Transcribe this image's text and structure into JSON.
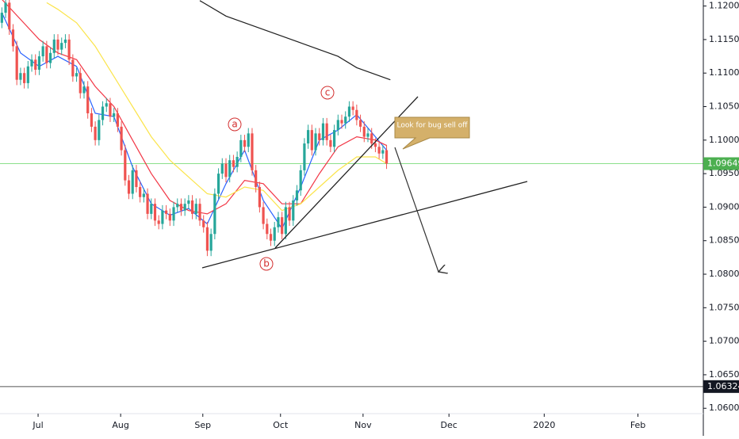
{
  "chart_data": {
    "type": "candlestick",
    "candles": [
      [
        1.1175,
        1.1198,
        1.1167,
        1.119
      ],
      [
        1.119,
        1.1213,
        1.1182,
        1.1205
      ],
      [
        1.1205,
        1.1213,
        1.1157,
        1.1165
      ],
      [
        1.1165,
        1.1173,
        1.1132,
        1.114
      ],
      [
        1.114,
        1.1148,
        1.1082,
        1.109
      ],
      [
        1.109,
        1.1108,
        1.1082,
        1.11
      ],
      [
        1.11,
        1.1108,
        1.1077,
        1.1085
      ],
      [
        1.1085,
        1.1118,
        1.1077,
        1.111
      ],
      [
        1.111,
        1.1128,
        1.1102,
        1.112
      ],
      [
        1.112,
        1.1128,
        1.1097,
        1.1105
      ],
      [
        1.1105,
        1.1133,
        1.1097,
        1.1125
      ],
      [
        1.1125,
        1.1148,
        1.1117,
        1.114
      ],
      [
        1.114,
        1.1148,
        1.1107,
        1.1115
      ],
      [
        1.1115,
        1.1138,
        1.1107,
        1.113
      ],
      [
        1.113,
        1.1158,
        1.1122,
        1.115
      ],
      [
        1.115,
        1.1158,
        1.1127,
        1.1135
      ],
      [
        1.1135,
        1.1153,
        1.1127,
        1.1145
      ],
      [
        1.1145,
        1.1158,
        1.1137,
        1.115
      ],
      [
        1.115,
        1.1158,
        1.1112,
        1.112
      ],
      [
        1.112,
        1.1128,
        1.1087,
        1.1095
      ],
      [
        1.1095,
        1.1108,
        1.1087,
        1.11
      ],
      [
        1.11,
        1.1108,
        1.1062,
        1.107
      ],
      [
        1.107,
        1.1088,
        1.1062,
        1.108
      ],
      [
        1.108,
        1.1088,
        1.1032,
        1.104
      ],
      [
        1.104,
        1.1048,
        1.1012,
        1.102
      ],
      [
        1.102,
        1.1028,
        1.0992,
        1.1
      ],
      [
        1.1,
        1.1038,
        1.0992,
        1.103
      ],
      [
        1.103,
        1.1058,
        1.1022,
        1.105
      ],
      [
        1.105,
        1.1063,
        1.1042,
        1.1055
      ],
      [
        1.1055,
        1.1063,
        1.1027,
        1.1035
      ],
      [
        1.1035,
        1.1048,
        1.1027,
        1.104
      ],
      [
        1.104,
        1.1048,
        1.1012,
        1.102
      ],
      [
        1.102,
        1.1028,
        1.0977,
        1.0985
      ],
      [
        1.0985,
        1.0993,
        1.0932,
        1.094
      ],
      [
        1.094,
        1.0948,
        1.0912,
        1.092
      ],
      [
        1.092,
        1.0963,
        1.0912,
        1.0955
      ],
      [
        1.0955,
        1.0963,
        1.0922,
        1.093
      ],
      [
        1.093,
        1.0938,
        1.0907,
        1.0915
      ],
      [
        1.0915,
        1.0928,
        1.0907,
        1.092
      ],
      [
        1.092,
        1.0928,
        1.0882,
        1.089
      ],
      [
        1.089,
        1.0913,
        1.0882,
        1.0905
      ],
      [
        1.0905,
        1.0913,
        1.0872,
        1.088
      ],
      [
        1.088,
        1.0888,
        1.0867,
        1.0875
      ],
      [
        1.0875,
        1.0903,
        1.0867,
        1.0895
      ],
      [
        1.0895,
        1.0903,
        1.0882,
        1.089
      ],
      [
        1.089,
        1.0898,
        1.0872,
        1.088
      ],
      [
        1.088,
        1.0908,
        1.0872,
        1.09
      ],
      [
        1.09,
        1.0913,
        1.0892,
        1.0905
      ],
      [
        1.0905,
        1.0913,
        1.0887,
        1.0895
      ],
      [
        1.0895,
        1.0913,
        1.0887,
        1.0905
      ],
      [
        1.0905,
        1.0918,
        1.0897,
        1.091
      ],
      [
        1.091,
        1.0918,
        1.0882,
        1.089
      ],
      [
        1.089,
        1.0913,
        1.0882,
        1.0905
      ],
      [
        1.0905,
        1.0913,
        1.0872,
        1.088
      ],
      [
        1.088,
        1.0888,
        1.0862,
        1.087
      ],
      [
        1.087,
        1.0878,
        1.0827,
        1.0835
      ],
      [
        1.0835,
        1.0868,
        1.0827,
        1.086
      ],
      [
        1.086,
        1.0928,
        1.0852,
        1.092
      ],
      [
        1.092,
        1.0958,
        1.0912,
        1.095
      ],
      [
        1.095,
        1.0973,
        1.0942,
        1.0965
      ],
      [
        1.0965,
        1.0973,
        1.0937,
        1.0945
      ],
      [
        1.0945,
        1.0978,
        1.0937,
        1.097
      ],
      [
        1.097,
        1.0978,
        1.0952,
        1.096
      ],
      [
        1.096,
        1.0983,
        1.0952,
        1.0975
      ],
      [
        1.0975,
        1.1008,
        1.0967,
        1.1
      ],
      [
        1.1,
        1.1008,
        1.0982,
        1.099
      ],
      [
        1.099,
        1.1018,
        1.0982,
        1.101
      ],
      [
        1.101,
        1.1018,
        1.0947,
        1.0955
      ],
      [
        1.0955,
        1.0963,
        1.0922,
        1.093
      ],
      [
        1.093,
        1.0938,
        1.0892,
        1.09
      ],
      [
        1.09,
        1.0908,
        1.0867,
        1.0875
      ],
      [
        1.0875,
        1.0883,
        1.0852,
        1.086
      ],
      [
        1.086,
        1.0868,
        1.0842,
        1.085
      ],
      [
        1.085,
        1.0878,
        1.0842,
        1.087
      ],
      [
        1.087,
        1.0893,
        1.0862,
        1.0885
      ],
      [
        1.0885,
        1.0893,
        1.0852,
        1.086
      ],
      [
        1.086,
        1.0908,
        1.0852,
        1.09
      ],
      [
        1.09,
        1.0908,
        1.0872,
        1.088
      ],
      [
        1.088,
        1.0918,
        1.0872,
        1.091
      ],
      [
        1.091,
        1.0933,
        1.0902,
        1.0925
      ],
      [
        1.0925,
        1.0963,
        1.0917,
        1.0955
      ],
      [
        1.0955,
        1.1003,
        1.0947,
        1.0995
      ],
      [
        1.0995,
        1.1023,
        1.0987,
        1.1015
      ],
      [
        1.1015,
        1.1023,
        1.0977,
        1.0985
      ],
      [
        1.0985,
        1.1018,
        1.0977,
        1.101
      ],
      [
        1.101,
        1.1018,
        1.0992,
        1.1
      ],
      [
        1.1,
        1.1033,
        1.0992,
        1.1025
      ],
      [
        1.1025,
        1.1033,
        1.0992,
        1.1
      ],
      [
        1.1,
        1.1008,
        1.0982,
        1.099
      ],
      [
        1.099,
        1.1023,
        1.0982,
        1.1015
      ],
      [
        1.1015,
        1.1038,
        1.1007,
        1.103
      ],
      [
        1.103,
        1.1038,
        1.1017,
        1.1025
      ],
      [
        1.1025,
        1.1043,
        1.1017,
        1.1035
      ],
      [
        1.1035,
        1.1058,
        1.1027,
        1.105
      ],
      [
        1.105,
        1.1058,
        1.1037,
        1.1045
      ],
      [
        1.1045,
        1.1053,
        1.1022,
        1.103
      ],
      [
        1.103,
        1.1038,
        1.1012,
        1.102
      ],
      [
        1.102,
        1.1028,
        1.0997,
        1.1005
      ],
      [
        1.1005,
        1.1018,
        1.0997,
        1.101
      ],
      [
        1.101,
        1.1018,
        1.0987,
        1.0995
      ],
      [
        1.0995,
        1.1003,
        1.0982,
        1.099
      ],
      [
        1.099,
        1.0998,
        1.0972,
        1.098
      ],
      [
        1.098,
        1.0993,
        1.0972,
        1.0985
      ],
      [
        1.0985,
        1.0993,
        1.0957,
        1.0965
      ]
    ],
    "up_color": "#26a69a",
    "down_color": "#ef5350",
    "series": [
      {
        "color": "#2962ff",
        "x": [
          0,
          5,
          10,
          15,
          20,
          25,
          30,
          35,
          40,
          45,
          50,
          55,
          60,
          65,
          70,
          75,
          80,
          85,
          90,
          95,
          100,
          103
        ],
        "values": [
          1.119,
          1.113,
          1.111,
          1.1125,
          1.111,
          1.104,
          1.1035,
          1.096,
          1.0905,
          1.0888,
          1.0898,
          1.0875,
          1.0935,
          1.0985,
          1.091,
          1.0868,
          1.093,
          1.1,
          1.1015,
          1.1038,
          1.1005,
          1.0985
        ]
      },
      {
        "color": "#f23645",
        "x": [
          0,
          5,
          10,
          15,
          20,
          25,
          30,
          35,
          40,
          45,
          50,
          55,
          60,
          65,
          70,
          75,
          80,
          85,
          90,
          95,
          100,
          103
        ],
        "values": [
          1.121,
          1.118,
          1.115,
          1.113,
          1.112,
          1.108,
          1.105,
          1.1,
          1.095,
          1.091,
          1.0895,
          1.089,
          1.0905,
          1.094,
          1.0935,
          1.0905,
          1.0905,
          1.095,
          1.099,
          1.1005,
          1.1,
          1.0992
        ]
      },
      {
        "color": "#fbe44a",
        "x": [
          12,
          15,
          20,
          25,
          30,
          35,
          40,
          45,
          50,
          55,
          60,
          65,
          70,
          75,
          80,
          85,
          90,
          95,
          100,
          103
        ],
        "values": [
          1.1205,
          1.1195,
          1.1175,
          1.114,
          1.1095,
          1.105,
          1.1005,
          1.097,
          1.0945,
          1.092,
          1.0915,
          1.093,
          1.0925,
          1.0895,
          1.0905,
          1.093,
          1.0955,
          1.0975,
          1.0975,
          1.0965
        ]
      },
      {
        "color": "#1e1e1e",
        "x": [
          53,
          60,
          70,
          80,
          90,
          95,
          104
        ],
        "values": [
          1.1208,
          1.1185,
          1.1165,
          1.1145,
          1.1125,
          1.1108,
          1.109
        ]
      }
    ],
    "xlim": [
      -0.5,
      187.8
    ],
    "xticks": [
      {
        "value": 9.7,
        "label": "Jul"
      },
      {
        "value": 31.8,
        "label": "Aug"
      },
      {
        "value": 53.8,
        "label": "Sep"
      },
      {
        "value": 74.6,
        "label": "Oct"
      },
      {
        "value": 96.7,
        "label": "Nov"
      },
      {
        "value": 119.7,
        "label": "Dec"
      },
      {
        "value": 145.2,
        "label": "2020"
      },
      {
        "value": 170.3,
        "label": "Feb"
      }
    ],
    "ylim": [
      1.0592,
      1.1209
    ],
    "yticks": [
      {
        "value": 1.12,
        "label": "1.12000"
      },
      {
        "value": 1.115,
        "label": "1.11500"
      },
      {
        "value": 1.11,
        "label": "1.11000"
      },
      {
        "value": 1.105,
        "label": "1.10500"
      },
      {
        "value": 1.1,
        "label": "1.10000"
      },
      {
        "value": 1.095,
        "label": "1.09500"
      },
      {
        "value": 1.09,
        "label": "1.09000"
      },
      {
        "value": 1.085,
        "label": "1.08500"
      },
      {
        "value": 1.08,
        "label": "1.08000"
      },
      {
        "value": 1.075,
        "label": "1.07500"
      },
      {
        "value": 1.07,
        "label": "1.07000"
      },
      {
        "value": 1.065,
        "label": "1.06500"
      },
      {
        "value": 1.06,
        "label": "1.06000"
      }
    ],
    "price_lines": [
      {
        "value": 1.09649,
        "label": "1.09649",
        "color": "#4caf50",
        "line_color": "#8be08b"
      },
      {
        "value": 1.06324,
        "label": "1.06324",
        "color": "#131722",
        "line_color": "#555555"
      }
    ],
    "annotations": {
      "wave_a": "a",
      "wave_b": "b",
      "wave_c": "c",
      "note": "Look for bug sell off"
    }
  }
}
